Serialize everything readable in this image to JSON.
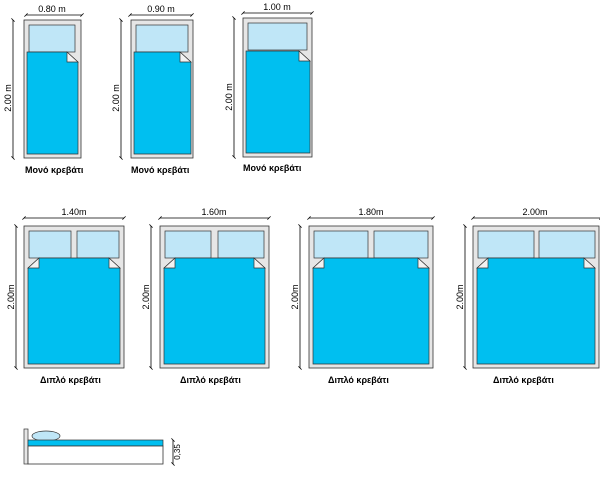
{
  "colors": {
    "mattress": "#00bff0",
    "pillow": "#bfe6f7",
    "frame": "#e6e6e6",
    "outline": "#333333"
  },
  "single_beds": [
    {
      "width_label": "0.80 m",
      "length_label": "2.00 m",
      "caption": "Μονό κρεβάτι"
    },
    {
      "width_label": "0.90 m",
      "length_label": "2.00 m",
      "caption": "Μονό κρεβάτι"
    },
    {
      "width_label": "1.00 m",
      "length_label": "2.00 m",
      "caption": "Μονό κρεβάτι"
    }
  ],
  "double_beds": [
    {
      "width_label": "1.40m",
      "length_label": "2.00m",
      "caption": "Διπλό κρεβάτι"
    },
    {
      "width_label": "1.60m",
      "length_label": "2.00m",
      "caption": "Διπλό κρεβάτι"
    },
    {
      "width_label": "1.80m",
      "length_label": "2.00m",
      "caption": "Διπλό κρεβάτι"
    },
    {
      "width_label": "2.00m",
      "length_label": "2.00m",
      "caption": "Διπλό κρεβάτι"
    }
  ],
  "side_view": {
    "height_label": "0,35"
  }
}
